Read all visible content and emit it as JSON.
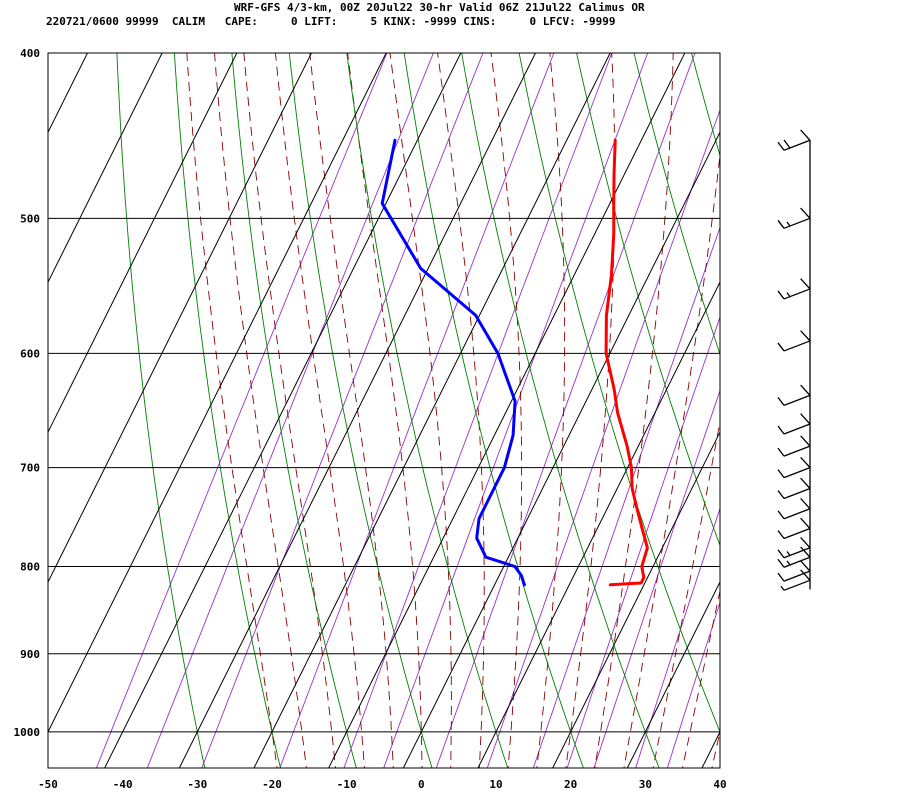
{
  "header": {
    "line1": "WRF-GFS 4/3-km, 00Z 20Jul22 30-hr Valid 06Z 21Jul22 Calimus OR",
    "line2": "220721/0600 99999  CALIM   CAPE:     0 LIFT:     5 KINX: -9999 CINS:     0 LFCV: -9999"
  },
  "colors": {
    "temperature": "#ff0000",
    "dewpoint": "#0000ff",
    "isotherm_grid": "#000000",
    "dry_adiabat": "#008000",
    "moist_adiabat": "#8b0000",
    "mixing_ratio": "#9932cc",
    "wind_barb": "#000000"
  },
  "chart_data": {
    "type": "line",
    "subtype": "skew-T log-P sounding",
    "xlabel": "",
    "ylabel": "",
    "xlim": [
      -50,
      40
    ],
    "ylim": [
      400,
      1050
    ],
    "y_scale": "log",
    "x_ticks": [
      -50,
      -40,
      -30,
      -20,
      -10,
      0,
      10,
      20,
      30,
      40
    ],
    "y_ticks": [
      400,
      500,
      600,
      700,
      800,
      900,
      1000
    ],
    "grid": true,
    "series": [
      {
        "key": "temperature",
        "points": [
          [
            820,
            15.5
          ],
          [
            818,
            19.5
          ],
          [
            812,
            19.5
          ],
          [
            800,
            18.5
          ],
          [
            780,
            18.0
          ],
          [
            760,
            16.0
          ],
          [
            740,
            14.0
          ],
          [
            720,
            12.0
          ],
          [
            700,
            10.5
          ],
          [
            680,
            8.5
          ],
          [
            650,
            5.0
          ],
          [
            630,
            3.0
          ],
          [
            600,
            -0.5
          ],
          [
            570,
            -3.0
          ],
          [
            540,
            -5.0
          ],
          [
            510,
            -7.5
          ],
          [
            490,
            -9.5
          ],
          [
            470,
            -11.5
          ],
          [
            450,
            -13.5
          ]
        ]
      },
      {
        "key": "dewpoint",
        "points": [
          [
            820,
            4.0
          ],
          [
            810,
            3.0
          ],
          [
            800,
            1.5
          ],
          [
            790,
            -3.0
          ],
          [
            770,
            -5.5
          ],
          [
            750,
            -6.5
          ],
          [
            720,
            -6.5
          ],
          [
            700,
            -6.5
          ],
          [
            670,
            -7.5
          ],
          [
            640,
            -9.5
          ],
          [
            600,
            -15.0
          ],
          [
            570,
            -20.5
          ],
          [
            535,
            -31.0
          ],
          [
            490,
            -40.5
          ],
          [
            450,
            -43.0
          ]
        ]
      }
    ],
    "wind_barbs": [
      {
        "p": 450,
        "speed_kt": 20
      },
      {
        "p": 500,
        "speed_kt": 15
      },
      {
        "p": 550,
        "speed_kt": 15
      },
      {
        "p": 590,
        "speed_kt": 10
      },
      {
        "p": 635,
        "speed_kt": 10
      },
      {
        "p": 660,
        "speed_kt": 10
      },
      {
        "p": 680,
        "speed_kt": 10
      },
      {
        "p": 700,
        "speed_kt": 10
      },
      {
        "p": 720,
        "speed_kt": 10
      },
      {
        "p": 740,
        "speed_kt": 10
      },
      {
        "p": 760,
        "speed_kt": 10
      },
      {
        "p": 780,
        "speed_kt": 15
      },
      {
        "p": 790,
        "speed_kt": 15
      },
      {
        "p": 805,
        "speed_kt": 10
      },
      {
        "p": 815,
        "speed_kt": 5
      }
    ]
  }
}
